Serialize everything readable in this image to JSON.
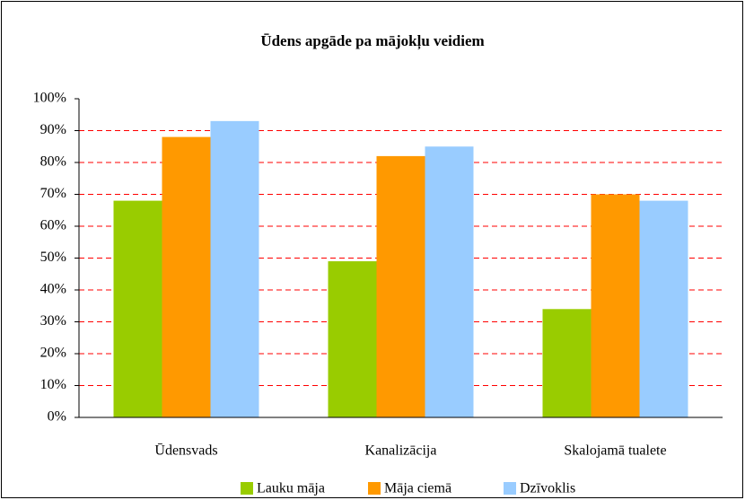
{
  "chart_data": {
    "type": "bar",
    "title": "Ūdens apgāde pa mājokļu veidiem",
    "categories": [
      "Ūdensvads",
      "Kanalizācija",
      "Skalojamā tualete"
    ],
    "series": [
      {
        "name": "Lauku māja",
        "color": "#99cc00",
        "values": [
          68,
          49,
          34
        ]
      },
      {
        "name": "Māja ciemā",
        "color": "#ff9900",
        "values": [
          88,
          82,
          70
        ]
      },
      {
        "name": "Dzīvoklis",
        "color": "#99ccff",
        "values": [
          93,
          85,
          68
        ]
      }
    ],
    "ylim": [
      0,
      100
    ],
    "yticks": [
      {
        "value": 0,
        "label": "0%"
      },
      {
        "value": 10,
        "label": "10%"
      },
      {
        "value": 20,
        "label": "20%"
      },
      {
        "value": 30,
        "label": "30%"
      },
      {
        "value": 40,
        "label": "40%"
      },
      {
        "value": 50,
        "label": "50%"
      },
      {
        "value": 60,
        "label": "60%"
      },
      {
        "value": 70,
        "label": "70%"
      },
      {
        "value": 80,
        "label": "80%"
      },
      {
        "value": 90,
        "label": "90%"
      },
      {
        "value": 100,
        "label": "100%"
      }
    ],
    "grid": true,
    "grid_color": "#ff0000",
    "legend": "bottom"
  }
}
